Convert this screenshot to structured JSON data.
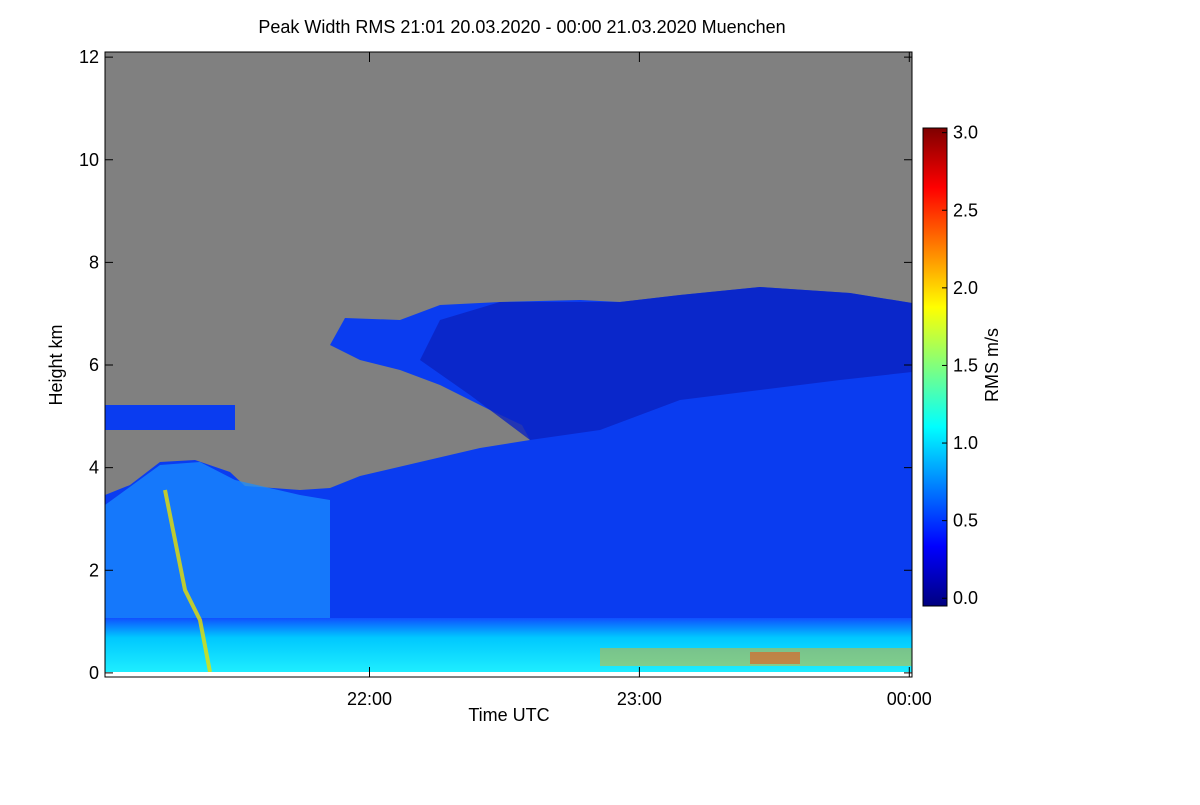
{
  "chart_data": {
    "type": "heatmap",
    "title": "Peak Width RMS   21:01 20.03.2020 - 00:00 21.03.2020 Muenchen",
    "x_label": "Time UTC",
    "y_label": "Height km",
    "colorbar_label": "RMS m/s",
    "xlim": [
      21.02,
      24.01
    ],
    "xticks": [
      {
        "value": 22,
        "label": "22:00"
      },
      {
        "value": 23,
        "label": "23:00"
      },
      {
        "value": 24,
        "label": "00:00"
      }
    ],
    "ylim": [
      -0.08,
      12.1
    ],
    "yticks": [
      0,
      2,
      4,
      6,
      8,
      10,
      12
    ],
    "clim": [
      -0.05,
      3.03
    ],
    "cticks": [
      {
        "value": 0,
        "label": "0.0"
      },
      {
        "value": 0.5,
        "label": "0.5"
      },
      {
        "value": 1,
        "label": "1.0"
      },
      {
        "value": 1.5,
        "label": "1.5"
      },
      {
        "value": 2,
        "label": "2.0"
      },
      {
        "value": 2.5,
        "label": "2.5"
      },
      {
        "value": 3,
        "label": "3.0"
      }
    ],
    "colormap": [
      "#00007f",
      "#0000ff",
      "#007fff",
      "#00ffff",
      "#7fff7f",
      "#ffff00",
      "#ff7f00",
      "#ff0000",
      "#7f0000"
    ]
  }
}
